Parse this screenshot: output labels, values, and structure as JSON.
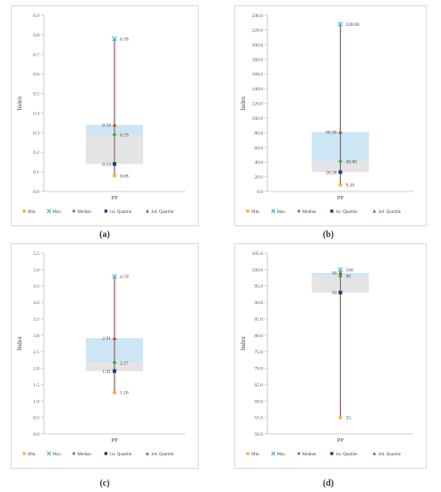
{
  "legend": [
    {
      "label": "Min.",
      "marker": "star",
      "color": "#f5b335"
    },
    {
      "label": "Max.",
      "marker": "asterisk",
      "color": "#5bb5e0"
    },
    {
      "label": "Median",
      "marker": "diamond",
      "color": "#3aa63a"
    },
    {
      "label": "1st. Quartile",
      "marker": "square",
      "color": "#1f3f7a"
    },
    {
      "label": "3rd. Quartile",
      "marker": "triangle",
      "color": "#b0522a"
    }
  ],
  "box_colors": {
    "lower": "#e4e4e4",
    "upper": "#cde6f5",
    "whisker": "#8a5a5a"
  },
  "chart_data": [
    {
      "id": "a",
      "caption": "(a)",
      "type": "box",
      "ylabel": "Index",
      "category": "PP",
      "ylim": [
        0,
        0.9
      ],
      "ticks": [
        "0.0",
        "0.1",
        "0.2",
        "0.3",
        "0.4",
        "0.5",
        "0.6",
        "0.7",
        "0.8",
        "0.9"
      ],
      "tick_values": [
        0,
        0.1,
        0.2,
        0.3,
        0.4,
        0.5,
        0.6,
        0.7,
        0.8,
        0.9
      ],
      "min": 0.08,
      "q1": 0.14,
      "median": 0.29,
      "q3": 0.34,
      "max": 0.78,
      "labels": {
        "min": "0.08",
        "q1": "0.14",
        "median": "0.29",
        "q3": "0.34",
        "max": "0.78"
      }
    },
    {
      "id": "b",
      "caption": "(b)",
      "type": "box",
      "ylabel": "Index",
      "category": "PP",
      "ylim": [
        0,
        240
      ],
      "ticks": [
        "0.0",
        "20.0",
        "40.0",
        "60.0",
        "80.0",
        "100.0",
        "120.0",
        "140.0",
        "160.0",
        "180.0",
        "200.0",
        "220.0",
        "240.0"
      ],
      "tick_values": [
        0,
        20,
        40,
        60,
        80,
        100,
        120,
        140,
        160,
        180,
        200,
        220,
        240
      ],
      "min": 9.1,
      "q1": 26.3,
      "median": 40.8,
      "q3": 80.9,
      "max": 228,
      "labels": {
        "min": "9.10",
        "q1": "26.30",
        "median": "40.80",
        "q3": "80.90",
        "max": "228.00"
      }
    },
    {
      "id": "c",
      "caption": "(c)",
      "type": "box",
      "ylabel": "Index",
      "category": "PP",
      "ylim": [
        0,
        5.5
      ],
      "ticks": [
        "0.0",
        "0.5",
        "1.0",
        "1.5",
        "2.0",
        "2.5",
        "3.0",
        "3.5",
        "4.0",
        "4.5",
        "5.0",
        "5.5"
      ],
      "tick_values": [
        0,
        0.5,
        1,
        1.5,
        2,
        2.5,
        3,
        3.5,
        4,
        4.5,
        5,
        5.5
      ],
      "min": 1.26,
      "q1": 1.91,
      "median": 2.17,
      "q3": 2.91,
      "max": 4.79,
      "labels": {
        "min": "1.26",
        "q1": "1.91",
        "median": "2.17",
        "q3": "2.91",
        "max": "4.79"
      }
    },
    {
      "id": "d",
      "caption": "(d)",
      "type": "box",
      "ylabel": "Index",
      "category": "PP",
      "ylim": [
        50,
        105
      ],
      "ticks": [
        "50.0",
        "55.0",
        "60.0",
        "65.0",
        "70.0",
        "75.0",
        "80.0",
        "85.0",
        "90.0",
        "95.0",
        "100.0",
        "105.0"
      ],
      "tick_values": [
        50,
        55,
        60,
        65,
        70,
        75,
        80,
        85,
        90,
        95,
        100,
        105
      ],
      "min": 55,
      "q1": 93,
      "median": 98,
      "q3": 99,
      "max": 100,
      "labels": {
        "min": "55",
        "q1": "93",
        "median": "98",
        "q3": "99",
        "max": "100"
      }
    }
  ]
}
